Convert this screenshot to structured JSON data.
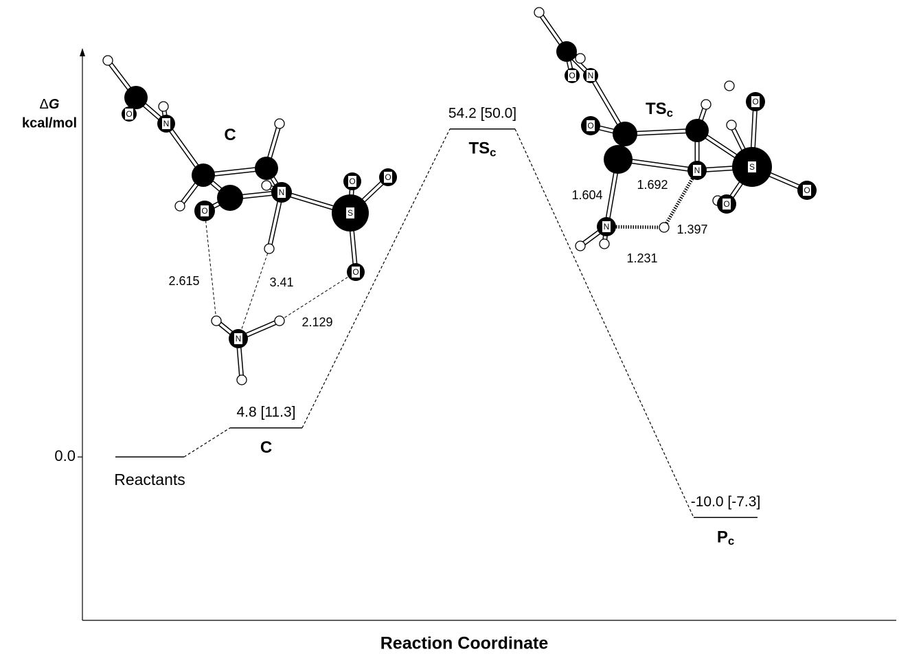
{
  "chart_data": {
    "type": "energy_profile",
    "y_label": {
      "delta": "Δ",
      "symbol": "G",
      "unit": "kcal/mol"
    },
    "x_label": "Reaction Coordinate",
    "categories": [
      {
        "text": "Reactants"
      },
      {
        "text": "C"
      },
      {
        "text": "TS",
        "sub": "c"
      },
      {
        "text": "P",
        "sub": "c"
      }
    ],
    "values": [
      0,
      4.8,
      54.2,
      -10.0
    ],
    "value_labels": [
      null,
      "4.8 [11.3]",
      "54.2 [50.0]",
      "-10.0 [-7.3]"
    ],
    "ylim": [
      -27,
      67
    ],
    "yticks": [
      {
        "value": 0,
        "label": "0.0"
      }
    ],
    "color": "#000000",
    "molecules": [
      {
        "name": {
          "text": "C"
        },
        "atoms": [
          "O",
          "N",
          "O",
          "N",
          "S",
          "O",
          "O",
          "O",
          "N"
        ],
        "distances": [
          2.615,
          3.41,
          2.129
        ]
      },
      {
        "name": {
          "text": "TS",
          "sub": "c"
        },
        "atoms": [
          "O",
          "N",
          "O",
          "N",
          "S",
          "O",
          "O",
          "O",
          "N"
        ],
        "distances": [
          1.604,
          1.692,
          1.397,
          1.231
        ]
      }
    ]
  }
}
